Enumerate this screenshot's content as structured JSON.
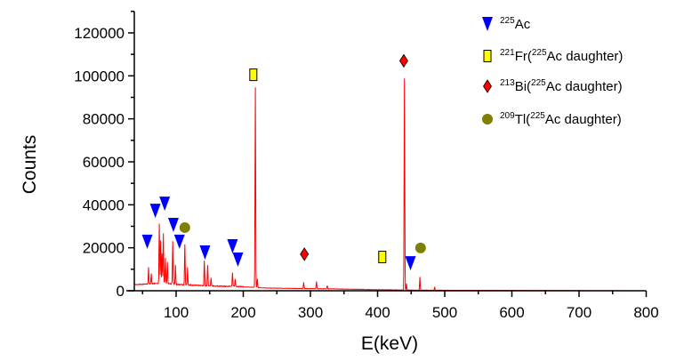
{
  "chart_data": {
    "type": "line",
    "title": "",
    "xlabel": "E(keV)",
    "ylabel": "Counts",
    "xlim": [
      38,
      800
    ],
    "ylim": [
      0,
      130000
    ],
    "xticks": [
      100,
      200,
      300,
      400,
      500,
      600,
      700,
      800
    ],
    "xtick_labels": [
      "100",
      "200",
      "300",
      "400",
      "500",
      "600",
      "700",
      "800"
    ],
    "yticks": [
      0,
      20000,
      40000,
      60000,
      80000,
      100000,
      120000
    ],
    "ytick_labels": [
      "0",
      "20000",
      "40000",
      "60000",
      "80000",
      "100000",
      "120000"
    ],
    "grid": false,
    "spectrum_color": "#ff0000",
    "continuum": [
      [
        38,
        2600
      ],
      [
        60,
        3000
      ],
      [
        80,
        3400
      ],
      [
        100,
        2800
      ],
      [
        150,
        2000
      ],
      [
        200,
        1700
      ],
      [
        217,
        1500
      ],
      [
        230,
        1200
      ],
      [
        300,
        900
      ],
      [
        350,
        700
      ],
      [
        400,
        400
      ],
      [
        440,
        250
      ],
      [
        470,
        150
      ],
      [
        500,
        80
      ],
      [
        550,
        30
      ],
      [
        800,
        0
      ]
    ],
    "peaks": [
      [
        59,
        7900
      ],
      [
        63,
        5000
      ],
      [
        75,
        27700
      ],
      [
        77,
        19800
      ],
      [
        79,
        14000
      ],
      [
        81,
        23200
      ],
      [
        84,
        12000
      ],
      [
        87,
        10000
      ],
      [
        95,
        19800
      ],
      [
        99,
        9000
      ],
      [
        113,
        19000
      ],
      [
        117,
        8000
      ],
      [
        142,
        11600
      ],
      [
        147,
        9500
      ],
      [
        152,
        4000
      ],
      [
        184,
        6600
      ],
      [
        188,
        3500
      ],
      [
        218,
        93000
      ],
      [
        221,
        4000
      ],
      [
        290,
        2900
      ],
      [
        309,
        3300
      ],
      [
        325,
        1500
      ],
      [
        440,
        98500
      ],
      [
        443,
        3000
      ],
      [
        463,
        6200
      ],
      [
        485,
        1600
      ]
    ],
    "legend": {
      "placement": "top-right",
      "entries": [
        {
          "sup": "225",
          "label": "Ac",
          "marker": "triangle-down",
          "color": "#0000ff"
        },
        {
          "sup": "221",
          "label": "Fr(",
          "sup2": "225",
          "label2": "Ac daughter)",
          "marker": "square",
          "color": "#ffff00"
        },
        {
          "sup": "213",
          "label": "Bi(",
          "sup2": "225",
          "label2": "Ac daughter)",
          "marker": "diamond",
          "color": "#ff0000"
        },
        {
          "sup": "209",
          "label": "Tl(",
          "sup2": "225",
          "label2": "Ac daughter)",
          "marker": "circle",
          "color": "#808000"
        }
      ]
    },
    "markers": {
      "Ac-225": [
        [
          57,
          22800
        ],
        [
          69,
          37200
        ],
        [
          83,
          40500
        ],
        [
          96,
          30600
        ],
        [
          105,
          22800
        ],
        [
          143,
          17800
        ],
        [
          184,
          20700
        ],
        [
          192,
          14500
        ],
        [
          449,
          12800
        ]
      ],
      "Fr-221": [
        [
          215,
          100500
        ],
        [
          407,
          15700
        ]
      ],
      "Bi-213": [
        [
          291,
          17000
        ],
        [
          439,
          107000
        ]
      ],
      "Tl-209": [
        [
          113,
          29400
        ],
        [
          464,
          19900
        ]
      ]
    }
  }
}
